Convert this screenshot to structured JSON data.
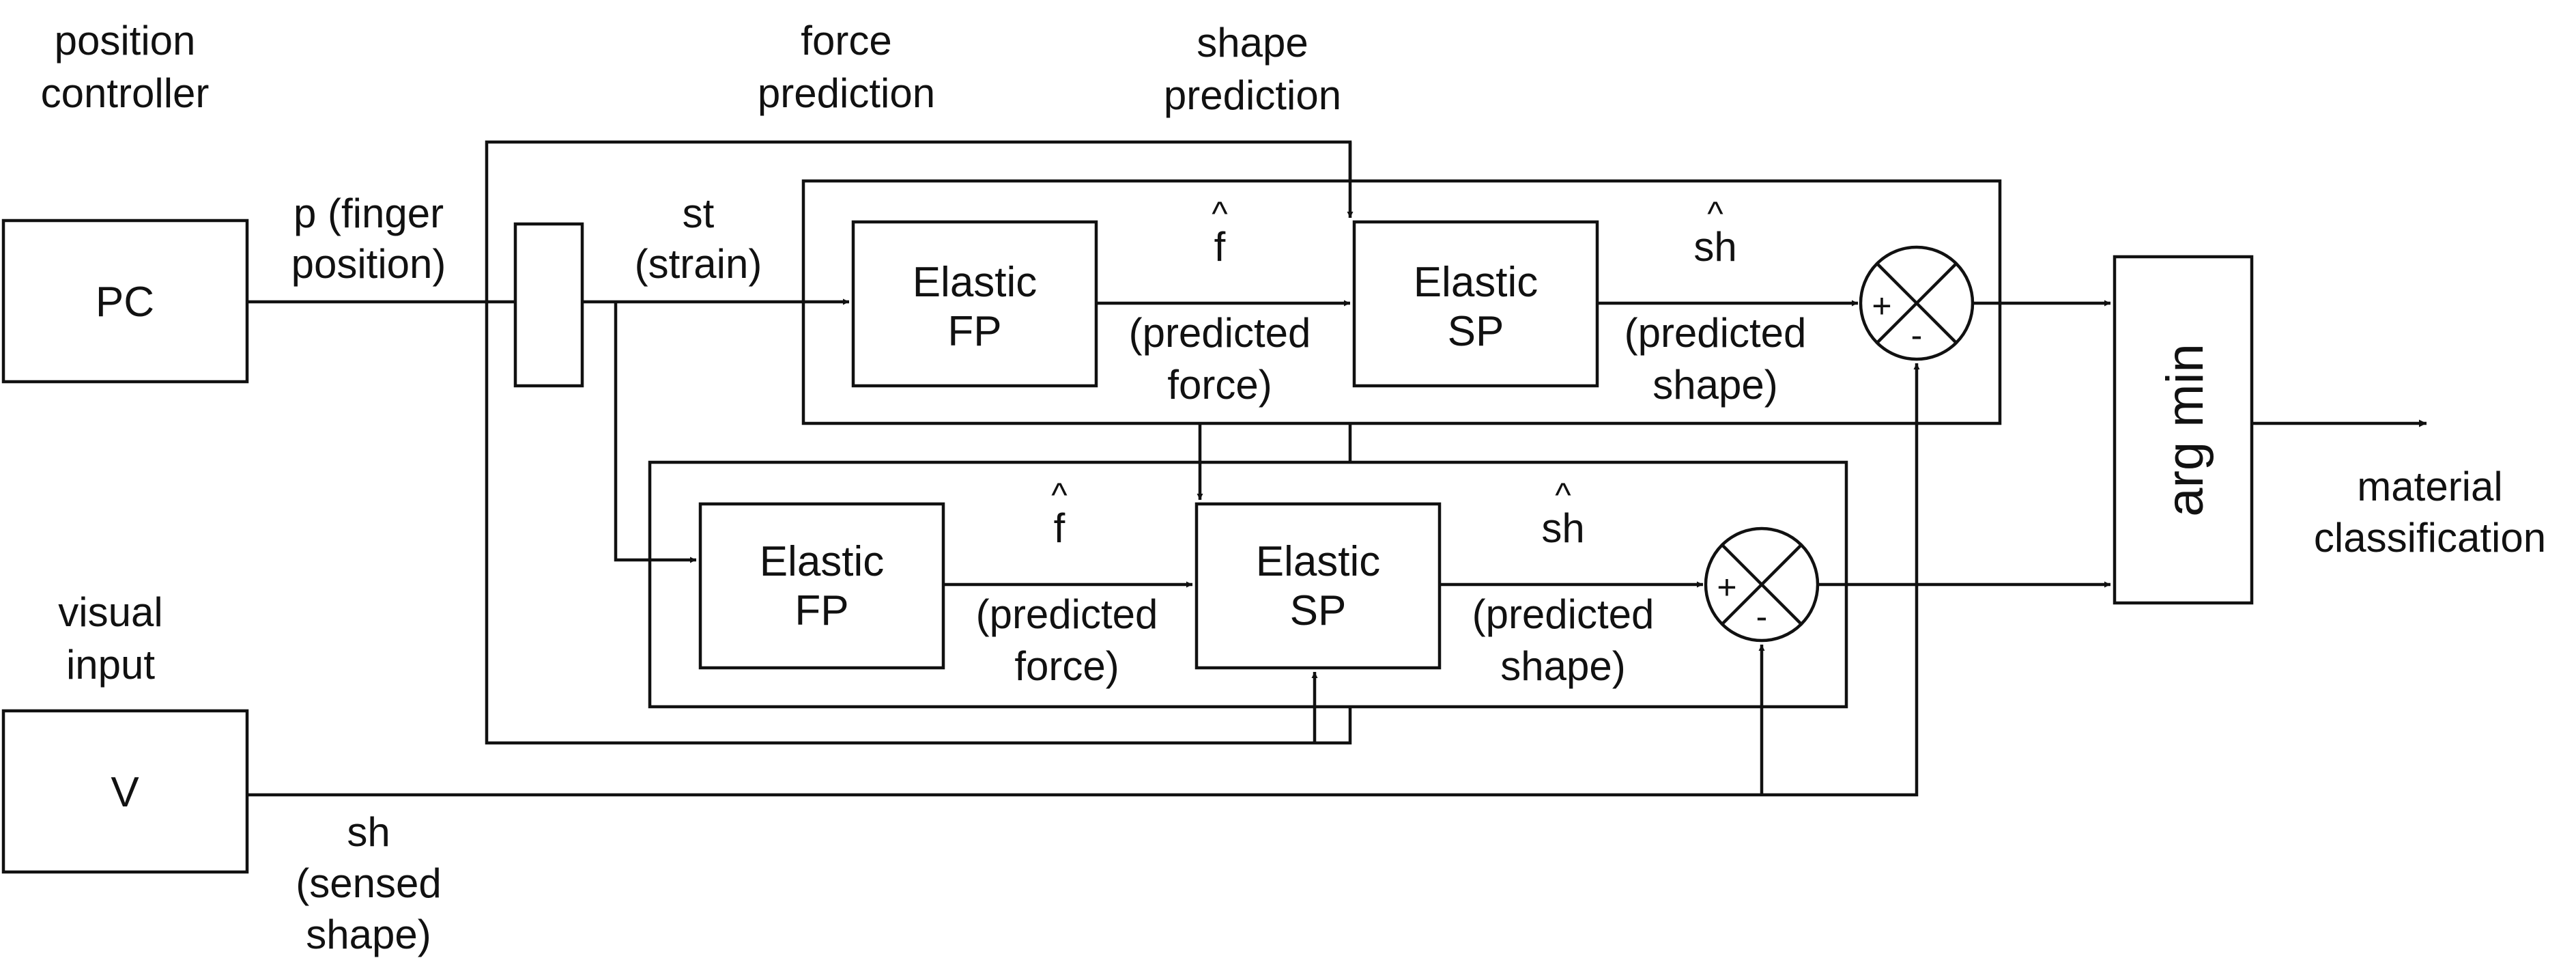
{
  "top_labels": {
    "position_controller": [
      "position",
      "controller"
    ],
    "force_prediction": [
      "force",
      "prediction"
    ],
    "shape_prediction": [
      "shape",
      "prediction"
    ],
    "visual_input": [
      "visual",
      "input"
    ]
  },
  "blocks": {
    "pc": "PC",
    "v": "V",
    "argmin": "arg min"
  },
  "signals": {
    "p": [
      "p (finger",
      "position)"
    ],
    "st": [
      "st",
      "(strain)"
    ],
    "sh": [
      "sh",
      "(sensed",
      "shape)"
    ],
    "material": [
      "material",
      "classification"
    ]
  },
  "upper_path": {
    "fp": [
      "Elastic",
      "FP"
    ],
    "sp": [
      "Elastic",
      "SP"
    ],
    "f_hat": "f",
    "f_label": [
      "(predicted",
      "force)"
    ],
    "sh_hat": "sh",
    "sh_label": [
      "(predicted",
      "shape)"
    ],
    "plus": "+",
    "minus": "-"
  },
  "lower_path": {
    "fp": [
      "Elastic",
      "FP"
    ],
    "sp": [
      "Elastic",
      "SP"
    ],
    "f_hat": "f",
    "f_label": [
      "(predicted",
      "force)"
    ],
    "sh_hat": "sh",
    "sh_label": [
      "(predicted",
      "shape)"
    ],
    "plus": "+",
    "minus": "-"
  },
  "hat_symbol": "^"
}
